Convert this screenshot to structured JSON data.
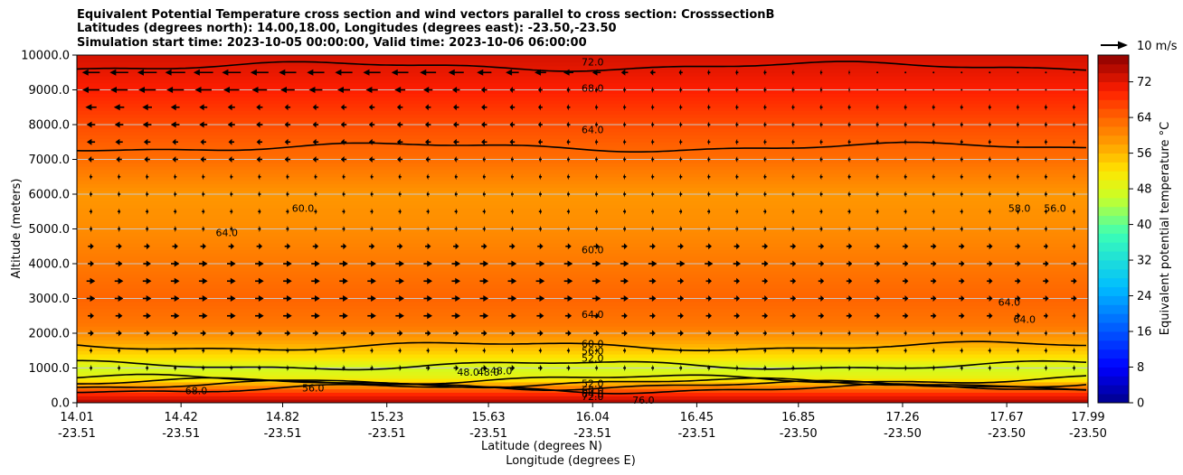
{
  "title": {
    "line1": "Equivalent Potential Temperature cross section and wind vectors parallel to cross section: CrosssectionB",
    "line2": "Latitudes (degrees north): 14.00,18.00, Longitudes (degrees east): -23.50,-23.50",
    "line3": "Simulation start time: 2023-10-05 00:00:00, Valid time: 2023-10-06 06:00:00"
  },
  "chart_data": {
    "type": "heatmap",
    "subtype": "filled contour cross-section with contour lines and wind vectors",
    "ylabel": "Altitude (meters)",
    "xlabel_line1": "Latitude (degrees N)",
    "xlabel_line2": "Longitude (degrees E)",
    "ylim": [
      0,
      10000
    ],
    "y_ticks": [
      0,
      1000,
      2000,
      3000,
      4000,
      5000,
      6000,
      7000,
      8000,
      9000,
      10000
    ],
    "y_tick_labels": [
      "0.0",
      "1000.0",
      "2000.0",
      "3000.0",
      "4000.0",
      "5000.0",
      "6000.0",
      "7000.0",
      "8000.0",
      "9000.0",
      "10000.0"
    ],
    "x_range": [
      14.01,
      17.99
    ],
    "x_ticks": [
      {
        "lat": "14.01",
        "lon": "-23.51",
        "value": 14.01
      },
      {
        "lat": "14.42",
        "lon": "-23.51",
        "value": 14.42
      },
      {
        "lat": "14.82",
        "lon": "-23.51",
        "value": 14.82
      },
      {
        "lat": "15.23",
        "lon": "-23.51",
        "value": 15.23
      },
      {
        "lat": "15.63",
        "lon": "-23.51",
        "value": 15.63
      },
      {
        "lat": "16.04",
        "lon": "-23.51",
        "value": 16.04
      },
      {
        "lat": "16.45",
        "lon": "-23.51",
        "value": 16.45
      },
      {
        "lat": "16.85",
        "lon": "-23.50",
        "value": 16.85
      },
      {
        "lat": "17.26",
        "lon": "-23.50",
        "value": 17.26
      },
      {
        "lat": "17.67",
        "lon": "-23.50",
        "value": 17.67
      },
      {
        "lat": "17.99",
        "lon": "-23.50",
        "value": 17.99
      }
    ],
    "colorbar": {
      "label": "Equivalent potential temperature °C",
      "range": [
        0,
        78
      ],
      "ticks": [
        0,
        8,
        16,
        24,
        32,
        40,
        48,
        56,
        64,
        72
      ],
      "tick_labels": [
        "0",
        "8",
        "16",
        "24",
        "32",
        "40",
        "48",
        "56",
        "64",
        "72"
      ]
    },
    "wind_key": {
      "label": "10 m/s",
      "speed": 10
    },
    "theta_e_profile": {
      "altitudes": [
        0,
        300,
        700,
        1000,
        1300,
        1700,
        2200,
        3000,
        4000,
        5000,
        6000,
        7000,
        8000,
        9000,
        10000
      ],
      "values": [
        76,
        68,
        50,
        47,
        52,
        57,
        62,
        64,
        62,
        60,
        59,
        63,
        66,
        70,
        73
      ]
    },
    "contour_labels": [
      {
        "text": "72.0",
        "x": 16.04,
        "y": 9800
      },
      {
        "text": "68.0",
        "x": 16.04,
        "y": 9050
      },
      {
        "text": "64.0",
        "x": 16.04,
        "y": 7860
      },
      {
        "text": "60.0",
        "x": 16.04,
        "y": 4400
      },
      {
        "text": "64.0",
        "x": 16.04,
        "y": 2550
      },
      {
        "text": "60.0",
        "x": 16.04,
        "y": 1700
      },
      {
        "text": "56.0",
        "x": 16.04,
        "y": 1500
      },
      {
        "text": "52.0",
        "x": 16.04,
        "y": 1280
      },
      {
        "text": "48.0",
        "x": 15.68,
        "y": 920
      },
      {
        "text": "52.0",
        "x": 16.04,
        "y": 560
      },
      {
        "text": "56.0",
        "x": 14.94,
        "y": 430
      },
      {
        "text": "60.0",
        "x": 16.04,
        "y": 360
      },
      {
        "text": "64.0",
        "x": 16.04,
        "y": 260
      },
      {
        "text": "68.0",
        "x": 14.48,
        "y": 350
      },
      {
        "text": "72.0",
        "x": 16.04,
        "y": 180
      },
      {
        "text": "76.0",
        "x": 16.24,
        "y": 80
      },
      {
        "text": "60.0",
        "x": 14.9,
        "y": 5600
      },
      {
        "text": "64.0",
        "x": 14.6,
        "y": 4900
      },
      {
        "text": "58.0",
        "x": 17.72,
        "y": 5600
      },
      {
        "text": "56.0",
        "x": 17.86,
        "y": 5600
      },
      {
        "text": "64.0",
        "x": 17.68,
        "y": 2900
      },
      {
        "text": "64.0",
        "x": 17.74,
        "y": 2400
      },
      {
        "text": "48.0",
        "x": 15.55,
        "y": 880
      },
      {
        "text": "48.0",
        "x": 15.63,
        "y": 880
      }
    ],
    "wind_rows": [
      {
        "altitude": 9500,
        "u": [
          -6,
          -7,
          -6,
          -6,
          -5,
          -3,
          -1,
          -1,
          0,
          0,
          0
        ]
      },
      {
        "altitude": 9000,
        "u": [
          -6,
          -6,
          -5,
          -4,
          -2,
          -1,
          -1,
          -1,
          0,
          0,
          0
        ]
      },
      {
        "altitude": 8500,
        "u": [
          -4,
          -3,
          -2,
          -2,
          -2,
          -1,
          -1,
          -1,
          -1,
          -1,
          -1
        ]
      },
      {
        "altitude": 8000,
        "u": [
          -3,
          -3,
          -2,
          -2,
          -2,
          -1,
          -1,
          -1,
          -1,
          -1,
          -1
        ]
      },
      {
        "altitude": 7500,
        "u": [
          -3,
          -2,
          -2,
          -2,
          -2,
          -1,
          -1,
          -1,
          -1,
          -1,
          -1
        ]
      },
      {
        "altitude": 7000,
        "u": [
          -2,
          -2,
          -2,
          -2,
          -1,
          -1,
          -1,
          -1,
          -1,
          -1,
          -1
        ]
      },
      {
        "altitude": 6500,
        "u": [
          -1,
          -1,
          -1,
          -1,
          -1,
          -1,
          -1,
          -1,
          -1,
          -1,
          -1
        ]
      },
      {
        "altitude": 6000,
        "u": [
          -1,
          -1,
          -1,
          -1,
          -1,
          -1,
          -1,
          -1,
          -1,
          -1,
          -1
        ]
      },
      {
        "altitude": 5500,
        "u": [
          1,
          1,
          1,
          1,
          1,
          1,
          1,
          1,
          1,
          1,
          1
        ]
      },
      {
        "altitude": 5000,
        "u": [
          1,
          1,
          1,
          1,
          1,
          1,
          1,
          1,
          1,
          1,
          1
        ]
      },
      {
        "altitude": 4500,
        "u": [
          2,
          2,
          2,
          2,
          2,
          2,
          2,
          2,
          2,
          2,
          1
        ]
      },
      {
        "altitude": 4000,
        "u": [
          2,
          3,
          3,
          3,
          3,
          3,
          3,
          2,
          2,
          2,
          2
        ]
      },
      {
        "altitude": 3500,
        "u": [
          3,
          3,
          3,
          3,
          3,
          3,
          2,
          2,
          2,
          2,
          2
        ]
      },
      {
        "altitude": 3000,
        "u": [
          3,
          3,
          3,
          3,
          3,
          3,
          2,
          2,
          2,
          2,
          2
        ]
      },
      {
        "altitude": 2500,
        "u": [
          2,
          3,
          3,
          3,
          3,
          2,
          2,
          2,
          2,
          2,
          1
        ]
      },
      {
        "altitude": 2000,
        "u": [
          2,
          2,
          2,
          2,
          2,
          2,
          2,
          1,
          1,
          1,
          1
        ]
      },
      {
        "altitude": 1500,
        "u": [
          1,
          1,
          1,
          1,
          1,
          1,
          1,
          1,
          1,
          1,
          1
        ]
      },
      {
        "altitude": 1000,
        "u": [
          1,
          1,
          1,
          1,
          2,
          1,
          1,
          1,
          1,
          1,
          1
        ]
      }
    ]
  }
}
